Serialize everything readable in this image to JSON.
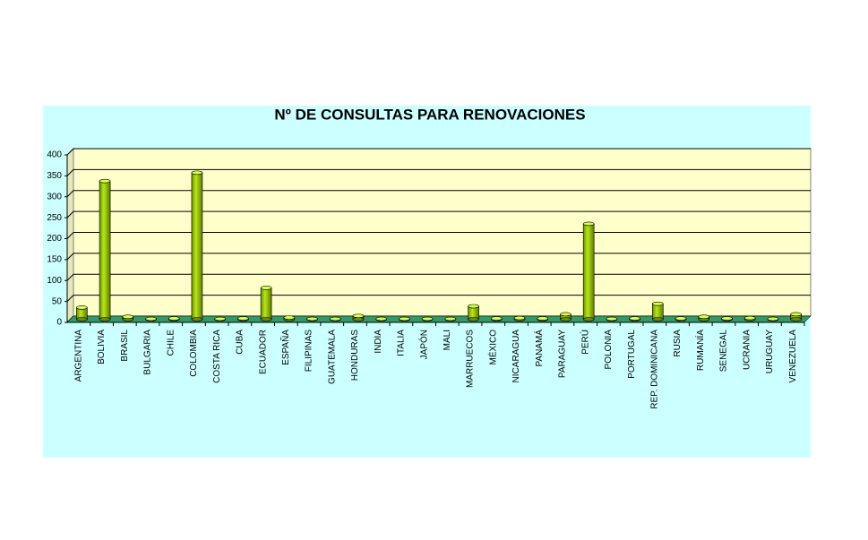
{
  "chart_data": {
    "type": "bar",
    "title": "Nº DE CONSULTAS PARA RENOVACIONES",
    "categories": [
      "ARGENTINA",
      "BOLIVIA",
      "BRASIL",
      "BULGARIA",
      "CHILE",
      "COLOMBIA",
      "COSTA RICA",
      "CUBA",
      "ECUADOR",
      "ESPAÑA",
      "FILIPINAS",
      "GUATEMALA",
      "HONDURAS",
      "INDIA",
      "ITALIA",
      "JAPÓN",
      "MALI",
      "MARRUECOS",
      "MÉXICO",
      "NICARAGUA",
      "PANAMÁ",
      "PARAGUAY",
      "PERÚ",
      "POLONIA",
      "PORTUGAL",
      "REP. DOMINICANA",
      "RUSIA",
      "RUMANÍA",
      "SENEGAL",
      "UCRANIA",
      "URUGUAY",
      "VENEZUELA"
    ],
    "values": [
      28,
      330,
      6,
      1,
      2,
      350,
      1,
      2,
      75,
      4,
      1,
      1,
      8,
      1,
      1,
      1,
      1,
      31,
      2,
      3,
      2,
      12,
      228,
      1,
      2,
      37,
      2,
      6,
      2,
      3,
      1,
      12
    ],
    "color": "#99cc00",
    "ylim": [
      0,
      400
    ],
    "yticks": [
      0,
      50,
      100,
      150,
      200,
      250,
      300,
      350,
      400
    ],
    "grid": true
  }
}
